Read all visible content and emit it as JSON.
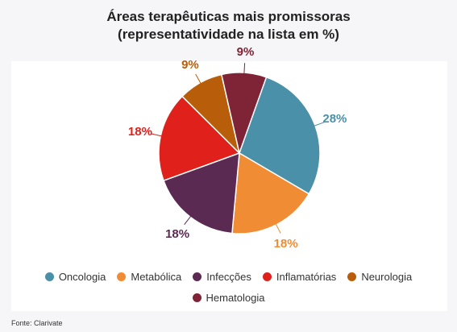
{
  "title_line1": "Áreas terapêuticas mais promissoras",
  "title_line2": "(representatividade na lista em %)",
  "source": "Fonte: Clarivate",
  "chart_data": {
    "type": "pie",
    "title": "Áreas terapêuticas mais promissoras (representatividade na lista em %)",
    "slices": [
      {
        "name": "Oncologia",
        "value": 28,
        "label": "28%",
        "color": "#4a90a8"
      },
      {
        "name": "Metabólica",
        "value": 18,
        "label": "18%",
        "color": "#f08c34"
      },
      {
        "name": "Infecções",
        "value": 18,
        "label": "18%",
        "color": "#5b2a52"
      },
      {
        "name": "Inflamatórias",
        "value": 18,
        "label": "18%",
        "color": "#e0211b"
      },
      {
        "name": "Neurologia",
        "value": 9,
        "label": "9%",
        "color": "#b85e0a"
      },
      {
        "name": "Hematologia",
        "value": 9,
        "label": "9%",
        "color": "#7f2336"
      }
    ],
    "legend_placement": "bottom"
  }
}
